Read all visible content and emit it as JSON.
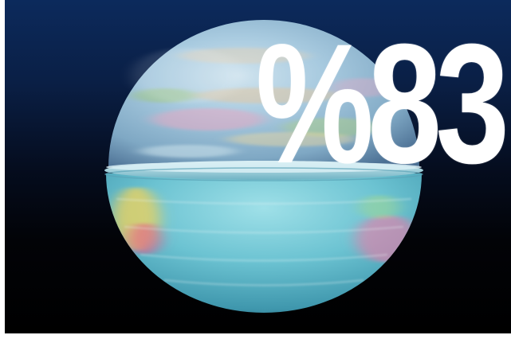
{
  "overlay": {
    "headline_number": "%83"
  },
  "scene": {
    "subject": "spinning-globe",
    "colors": {
      "sky_top": "#0c2a5c",
      "background_bottom": "#000000",
      "ocean": "#5fb8c8",
      "headline": "#ffffff"
    }
  }
}
